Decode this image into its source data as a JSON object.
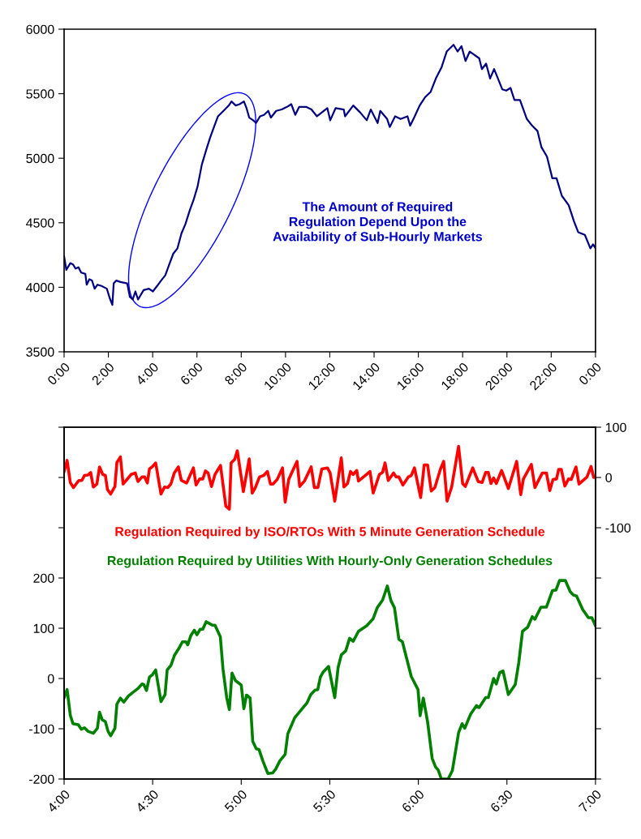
{
  "chart_data": [
    {
      "type": "line",
      "annotations": [
        "The Amount of Required\nRegulation Depend Upon the\nAvailability of Sub-Hourly Markets"
      ],
      "xlim": [
        0,
        24
      ],
      "xticks": [
        {
          "value": 0,
          "label": "0:00"
        },
        {
          "value": 2,
          "label": "2:00"
        },
        {
          "value": 4,
          "label": "4:00"
        },
        {
          "value": 6,
          "label": "6:00"
        },
        {
          "value": 8,
          "label": "8:00"
        },
        {
          "value": 10,
          "label": "10:00"
        },
        {
          "value": 12,
          "label": "12:00"
        },
        {
          "value": 14,
          "label": "14:00"
        },
        {
          "value": 16,
          "label": "16:00"
        },
        {
          "value": 18,
          "label": "18:00"
        },
        {
          "value": 20,
          "label": "20:00"
        },
        {
          "value": 22,
          "label": "22:00"
        },
        {
          "value": 24,
          "label": "0:00"
        }
      ],
      "ylim": [
        3500,
        6000
      ],
      "yticks": [
        3500,
        4000,
        4500,
        5000,
        5500,
        6000
      ],
      "grid": false,
      "series": [
        {
          "color": "#000080",
          "x": [
            0,
            0.1,
            0.28,
            0.4,
            0.52,
            0.65,
            0.77,
            0.96,
            1.02,
            1.14,
            1.26,
            1.38,
            1.51,
            1.69,
            1.93,
            2.06,
            2.18,
            2.24,
            2.36,
            2.55,
            2.85,
            2.97,
            3.1,
            3.22,
            3.34,
            3.59,
            3.83,
            4.01,
            4.2,
            4.38,
            4.57,
            4.75,
            4.93,
            5.12,
            5.3,
            5.48,
            5.67,
            5.85,
            6.03,
            6.22,
            6.4,
            6.59,
            6.77,
            6.95,
            7.2,
            7.44,
            7.56,
            7.75,
            7.93,
            8.12,
            8.24,
            8.36,
            8.54,
            8.67,
            8.85,
            9.03,
            9.22,
            9.34,
            9.58,
            9.83,
            10.07,
            10.26,
            10.44,
            10.62,
            10.93,
            11.17,
            11.42,
            11.89,
            12.02,
            12.26,
            12.63,
            12.69,
            13.06,
            13.36,
            13.67,
            13.85,
            14.16,
            14.28,
            14.59,
            14.71,
            14.95,
            15.2,
            15.51,
            15.63,
            15.81,
            16.06,
            16.3,
            16.55,
            16.79,
            17.04,
            17.28,
            17.59,
            17.77,
            17.95,
            18.13,
            18.32,
            18.75,
            18.87,
            19.06,
            19.24,
            19.42,
            19.79,
            19.97,
            20.16,
            20.34,
            20.59,
            20.9,
            21.14,
            21.38,
            21.56,
            21.81,
            22.05,
            22.24,
            22.48,
            22.79,
            23.03,
            23.22,
            23.52,
            23.77,
            23.89,
            24
          ],
          "values": [
            4240,
            4135,
            4187,
            4177,
            4145,
            4155,
            4114,
            4104,
            4020,
            4062,
            4052,
            3989,
            4020,
            4010,
            3989,
            3916,
            3863,
            4030,
            4052,
            4041,
            4030,
            3926,
            3905,
            3968,
            3905,
            3978,
            3989,
            3968,
            4010,
            4052,
            4093,
            4177,
            4260,
            4302,
            4417,
            4490,
            4594,
            4678,
            4782,
            4950,
            5054,
            5158,
            5242,
            5325,
            5367,
            5409,
            5440,
            5409,
            5419,
            5440,
            5388,
            5315,
            5294,
            5273,
            5325,
            5336,
            5367,
            5315,
            5367,
            5378,
            5398,
            5419,
            5336,
            5398,
            5398,
            5378,
            5325,
            5388,
            5294,
            5388,
            5378,
            5325,
            5409,
            5357,
            5294,
            5378,
            5273,
            5367,
            5304,
            5242,
            5325,
            5304,
            5325,
            5252,
            5315,
            5409,
            5472,
            5513,
            5618,
            5701,
            5827,
            5879,
            5827,
            5868,
            5754,
            5827,
            5774,
            5691,
            5733,
            5618,
            5691,
            5534,
            5524,
            5545,
            5451,
            5451,
            5304,
            5252,
            5211,
            5085,
            5012,
            4845,
            4845,
            4709,
            4636,
            4511,
            4427,
            4406,
            4302,
            4333,
            4302
          ]
        }
      ]
    },
    {
      "type": "line",
      "xlim": [
        4,
        7
      ],
      "xticks": [
        {
          "value": 4,
          "label": "4:00"
        },
        {
          "value": 4.5,
          "label": "4:30"
        },
        {
          "value": 5,
          "label": "5:00"
        },
        {
          "value": 5.5,
          "label": "5:30"
        },
        {
          "value": 6,
          "label": "6:00"
        },
        {
          "value": 6.5,
          "label": "6:30"
        },
        {
          "value": 7,
          "label": "7:00"
        }
      ],
      "ylim": [
        -200,
        500
      ],
      "yticks": [
        -200,
        -100,
        0,
        100,
        200,
        {
          "value": 300,
          "label": null
        },
        {
          "value": 400,
          "label": null
        },
        {
          "value": 500,
          "label": null
        }
      ],
      "y2lim": [
        -600,
        100
      ],
      "y2ticks": [
        {
          "value": -600,
          "label": null
        },
        {
          "value": -500,
          "label": null
        },
        {
          "value": -400,
          "label": null
        },
        {
          "value": -300,
          "label": null
        },
        {
          "value": -200,
          "label": null
        },
        -100,
        0,
        100
      ],
      "grid": false,
      "series": [
        {
          "name": "Regulation Required by ISO/RTOs With 5 Minute Generation Schedule",
          "color": "#ff0000",
          "axis": "y2",
          "x": [
            4.0,
            4.017,
            4.035,
            4.053,
            4.083,
            4.1,
            4.115,
            4.135,
            4.15,
            4.165,
            4.185,
            4.2,
            4.218,
            4.233,
            4.245,
            4.263,
            4.287,
            4.298,
            4.318,
            4.333,
            4.355,
            4.378,
            4.402,
            4.417,
            4.44,
            4.455,
            4.47,
            4.482,
            4.5,
            4.517,
            4.547,
            4.567,
            4.585,
            4.603,
            4.622,
            4.645,
            4.662,
            4.692,
            4.73,
            4.745,
            4.765,
            4.783,
            4.798,
            4.813,
            4.832,
            4.852,
            4.883,
            4.913,
            4.933,
            4.943,
            4.963,
            4.978,
            5.012,
            5.045,
            5.062,
            5.08,
            5.103,
            5.127,
            5.148,
            5.165,
            5.18,
            5.203,
            5.233,
            5.248,
            5.268,
            5.295,
            5.315,
            5.33,
            5.357,
            5.395,
            5.413,
            5.433,
            5.455,
            5.487,
            5.502,
            5.528,
            5.565,
            5.58,
            5.6,
            5.617,
            5.632,
            5.652,
            5.662,
            5.7,
            5.727,
            5.745,
            5.78,
            5.798,
            5.812,
            5.83,
            5.86,
            5.875,
            5.89,
            5.913,
            5.943,
            5.96,
            5.978,
            6.013,
            6.033,
            6.052,
            6.073,
            6.093,
            6.125,
            6.143,
            6.162,
            6.188,
            6.227,
            6.25,
            6.265,
            6.307,
            6.338,
            6.36,
            6.38,
            6.395,
            6.41,
            6.425,
            6.44,
            6.47,
            6.508,
            6.555,
            6.578,
            6.593,
            6.638,
            6.658,
            6.7,
            6.723,
            6.742,
            6.76,
            6.78,
            6.792,
            6.807,
            6.827,
            6.848,
            6.863,
            6.89,
            6.907,
            6.952,
            6.975,
            6.99,
            7.0
          ],
          "values": [
            12,
            34,
            -10,
            -20,
            -6,
            -6,
            4,
            5,
            10,
            -19,
            -13,
            21,
            6,
            4,
            -24,
            -33,
            -18,
            30,
            41,
            -13,
            -4,
            6,
            9,
            -8,
            1,
            1,
            -11,
            17,
            22,
            29,
            -33,
            -19,
            -20,
            -13,
            9,
            21,
            -6,
            -11,
            19,
            -15,
            -3,
            -3,
            13,
            9,
            -18,
            6,
            24,
            -57,
            -63,
            29,
            36,
            53,
            -28,
            37,
            -31,
            -20,
            1,
            4,
            12,
            -13,
            -13,
            -4,
            19,
            -49,
            -4,
            17,
            32,
            -18,
            -7,
            21,
            -20,
            -20,
            17,
            19,
            9,
            -47,
            39,
            -19,
            -12,
            12,
            6,
            14,
            -7,
            4,
            12,
            -31,
            6,
            10,
            29,
            -6,
            9,
            1,
            1,
            -15,
            1,
            4,
            19,
            -40,
            25,
            25,
            -27,
            -20,
            17,
            32,
            -47,
            -19,
            62,
            -12,
            -18,
            19,
            -8,
            -10,
            10,
            10,
            -12,
            -1,
            -12,
            14,
            -22,
            32,
            -34,
            -3,
            26,
            -20,
            9,
            9,
            -26,
            -4,
            -3,
            16,
            16,
            -17,
            -3,
            -4,
            21,
            -13,
            1,
            22,
            0,
            0
          ]
        },
        {
          "name": "Regulation Required by Utilities With Hourly-Only Generation Schedules",
          "color": "#008000",
          "x": [
            4.0,
            4.017,
            4.035,
            4.05,
            4.08,
            4.097,
            4.115,
            4.135,
            4.165,
            4.188,
            4.2,
            4.215,
            4.233,
            4.248,
            4.263,
            4.287,
            4.298,
            4.318,
            4.337,
            4.363,
            4.387,
            4.417,
            4.44,
            4.45,
            4.465,
            4.482,
            4.5,
            4.517,
            4.547,
            4.57,
            4.582,
            4.603,
            4.623,
            4.653,
            4.668,
            4.688,
            4.698,
            4.715,
            4.735,
            4.75,
            4.768,
            4.783,
            4.802,
            4.822,
            4.837,
            4.852,
            4.882,
            4.897,
            4.918,
            4.933,
            4.948,
            4.967,
            4.982,
            5.0,
            5.015,
            5.03,
            5.05,
            5.065,
            5.085,
            5.1,
            5.122,
            5.15,
            5.177,
            5.195,
            5.218,
            5.248,
            5.263,
            5.302,
            5.34,
            5.372,
            5.393,
            5.417,
            5.432,
            5.447,
            5.463,
            5.493,
            5.528,
            5.547,
            5.565,
            5.59,
            5.612,
            5.632,
            5.662,
            5.708,
            5.745,
            5.768,
            5.798,
            5.825,
            5.845,
            5.865,
            5.89,
            5.91,
            5.96,
            5.998,
            6.01,
            6.028,
            6.052,
            6.078,
            6.097,
            6.112,
            6.13,
            6.168,
            6.192,
            6.227,
            6.247,
            6.262,
            6.295,
            6.328,
            6.343,
            6.38,
            6.395,
            6.425,
            6.44,
            6.46,
            6.478,
            6.508,
            6.547,
            6.567,
            6.588,
            6.617,
            6.643,
            6.658,
            6.692,
            6.723,
            6.757,
            6.777,
            6.797,
            6.83,
            6.857,
            6.875,
            6.893,
            6.928,
            6.96,
            6.98,
            7.0
          ],
          "values": [
            -38,
            -22,
            -73,
            -90,
            -92,
            -101,
            -98,
            -105,
            -109,
            -99,
            -67,
            -82,
            -86,
            -105,
            -114,
            -99,
            -51,
            -39,
            -47,
            -35,
            -28,
            -20,
            -11,
            -12,
            -24,
            3,
            8,
            17,
            -46,
            -32,
            17,
            26,
            46,
            63,
            73,
            73,
            67,
            85,
            96,
            87,
            98,
            98,
            113,
            109,
            106,
            106,
            83,
            19,
            -38,
            -62,
            11,
            -4,
            -8,
            -13,
            -60,
            -33,
            -39,
            -125,
            -140,
            -141,
            -164,
            -189,
            -188,
            -180,
            -164,
            -151,
            -110,
            -78,
            -62,
            -48,
            -32,
            -23,
            -22,
            3,
            13,
            24,
            -38,
            22,
            47,
            55,
            80,
            74,
            94,
            105,
            119,
            141,
            156,
            184,
            155,
            141,
            78,
            73,
            4,
            -22,
            -74,
            -39,
            -86,
            -159,
            -176,
            -182,
            -200,
            -200,
            -183,
            -108,
            -90,
            -99,
            -71,
            -54,
            -58,
            -38,
            -38,
            0,
            -11,
            12,
            15,
            -32,
            -12,
            32,
            94,
            102,
            123,
            118,
            142,
            142,
            175,
            176,
            195,
            195,
            173,
            166,
            164,
            137,
            121,
            121,
            105
          ]
        }
      ]
    }
  ]
}
